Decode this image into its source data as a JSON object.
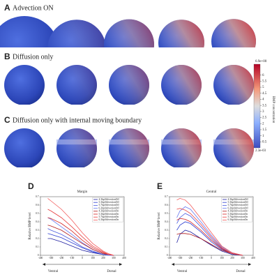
{
  "panels": [
    {
      "letter": "A",
      "title": "Advection ON"
    },
    {
      "letter": "B",
      "title": "Diffusion only"
    },
    {
      "letter": "C",
      "title": "Diffusion only with internal moving boundary"
    }
  ],
  "colorbar": {
    "label": "BMP concentration",
    "max": {
      "value": 6.9,
      "label": "6.9e+00"
    },
    "min": {
      "value": 0.0023,
      "label": "2.3e-03"
    },
    "ticks": [
      6,
      5.5,
      5,
      4.5,
      4,
      3.5,
      3,
      2.5,
      2,
      1.5,
      1,
      0.5
    ]
  },
  "chart_data": [
    {
      "type": "line",
      "letter": "D",
      "title": "Margin",
      "y_label": "Relative BMP level",
      "x": [
        -330,
        -300,
        -200,
        -100,
        0,
        100,
        200,
        250,
        300
      ],
      "xlim": [
        -400,
        400
      ],
      "xticks": [
        -400,
        -300,
        -200,
        -100,
        0,
        100,
        200,
        300,
        400
      ],
      "ylim": [
        0,
        0.7
      ],
      "yticks": [
        0,
        0.1,
        0.2,
        0.3,
        0.4,
        0.5,
        0.6,
        0.7
      ],
      "direction": {
        "left": "Ventral",
        "right": "Dorsal"
      },
      "series": [
        {
          "name": "4.3hpfAdvectionOff",
          "color": "#1f1fa0",
          "values": [
            0.2,
            0.2,
            0.16,
            0.11,
            0.06,
            0.03,
            0.01,
            0,
            0
          ]
        },
        {
          "name": "5.3hpfAdvectionOff",
          "color": "#2a3ccf",
          "values": [
            0.26,
            0.25,
            0.21,
            0.15,
            0.09,
            0.04,
            0.01,
            0,
            0
          ]
        },
        {
          "name": "5.7hpfAdvectionOff",
          "color": "#4a5be0",
          "values": [
            0.32,
            0.3,
            0.25,
            0.18,
            0.1,
            0.05,
            0.01,
            0,
            0
          ]
        },
        {
          "name": "6.3hpfAdvectionOff",
          "color": "#6b7bf0",
          "values": [
            0.45,
            0.43,
            0.34,
            0.25,
            0.15,
            0.07,
            0.02,
            0,
            0
          ]
        },
        {
          "name": "4.3hpfAdvectionOn",
          "color": "#b01818",
          "values": [
            0.36,
            0.35,
            0.3,
            0.22,
            0.14,
            0.07,
            0.02,
            0.01,
            0
          ]
        },
        {
          "name": "5.3hpfAdvectionOn",
          "color": "#d42020",
          "values": [
            0.45,
            0.44,
            0.38,
            0.29,
            0.18,
            0.09,
            0.03,
            0.01,
            0
          ]
        },
        {
          "name": "5.7hpfAdvectionOn",
          "color": "#e83a3a",
          "values": [
            0.55,
            0.53,
            0.45,
            0.34,
            0.22,
            0.11,
            0.04,
            0.01,
            0
          ]
        },
        {
          "name": "6.3hpfAdvectionOn",
          "color": "#f25a5a",
          "values": [
            0.68,
            0.65,
            0.55,
            0.42,
            0.27,
            0.14,
            0.05,
            0.02,
            0
          ]
        }
      ]
    },
    {
      "type": "line",
      "letter": "E",
      "title": "Central",
      "y_label": "Relative BMP level",
      "x": [
        -330,
        -300,
        -250,
        -200,
        -100,
        0,
        100,
        200,
        300
      ],
      "xlim": [
        -400,
        400
      ],
      "xticks": [
        -400,
        -300,
        -200,
        -100,
        0,
        100,
        200,
        300,
        400
      ],
      "ylim": [
        0,
        0.7
      ],
      "yticks": [
        0,
        0.1,
        0.2,
        0.3,
        0.4,
        0.5,
        0.6,
        0.7
      ],
      "direction": {
        "left": "Ventral",
        "right": "Dorsal"
      },
      "series": [
        {
          "name": "4.3hpfAdvectionOff",
          "color": "#1f1fa0",
          "values": [
            0.15,
            0.25,
            0.3,
            0.28,
            0.2,
            0.12,
            0.05,
            0.01,
            0
          ]
        },
        {
          "name": "5.3hpfAdvectionOff",
          "color": "#2a3ccf",
          "values": [
            0.3,
            0.36,
            0.4,
            0.38,
            0.28,
            0.16,
            0.07,
            0.02,
            0
          ]
        },
        {
          "name": "5.7hpfAdvectionOff",
          "color": "#4a5be0",
          "values": [
            0.38,
            0.45,
            0.5,
            0.47,
            0.34,
            0.2,
            0.08,
            0.02,
            0
          ]
        },
        {
          "name": "6.3hpfAdvectionOff",
          "color": "#6b7bf0",
          "values": [
            0.45,
            0.53,
            0.58,
            0.55,
            0.4,
            0.24,
            0.1,
            0.03,
            0
          ]
        },
        {
          "name": "4.3hpfAdvectionOn",
          "color": "#b01818",
          "values": [
            0.25,
            0.26,
            0.26,
            0.25,
            0.2,
            0.13,
            0.06,
            0.02,
            0
          ]
        },
        {
          "name": "5.3hpfAdvectionOn",
          "color": "#d42020",
          "values": [
            0.42,
            0.44,
            0.43,
            0.4,
            0.3,
            0.18,
            0.08,
            0.02,
            0
          ]
        },
        {
          "name": "5.7hpfAdvectionOn",
          "color": "#e83a3a",
          "values": [
            0.55,
            0.56,
            0.54,
            0.5,
            0.37,
            0.22,
            0.09,
            0.02,
            0
          ]
        },
        {
          "name": "6.3hpfAdvectionOn",
          "color": "#f25a5a",
          "values": [
            0.66,
            0.68,
            0.66,
            0.6,
            0.44,
            0.27,
            0.11,
            0.03,
            0
          ]
        }
      ]
    }
  ]
}
